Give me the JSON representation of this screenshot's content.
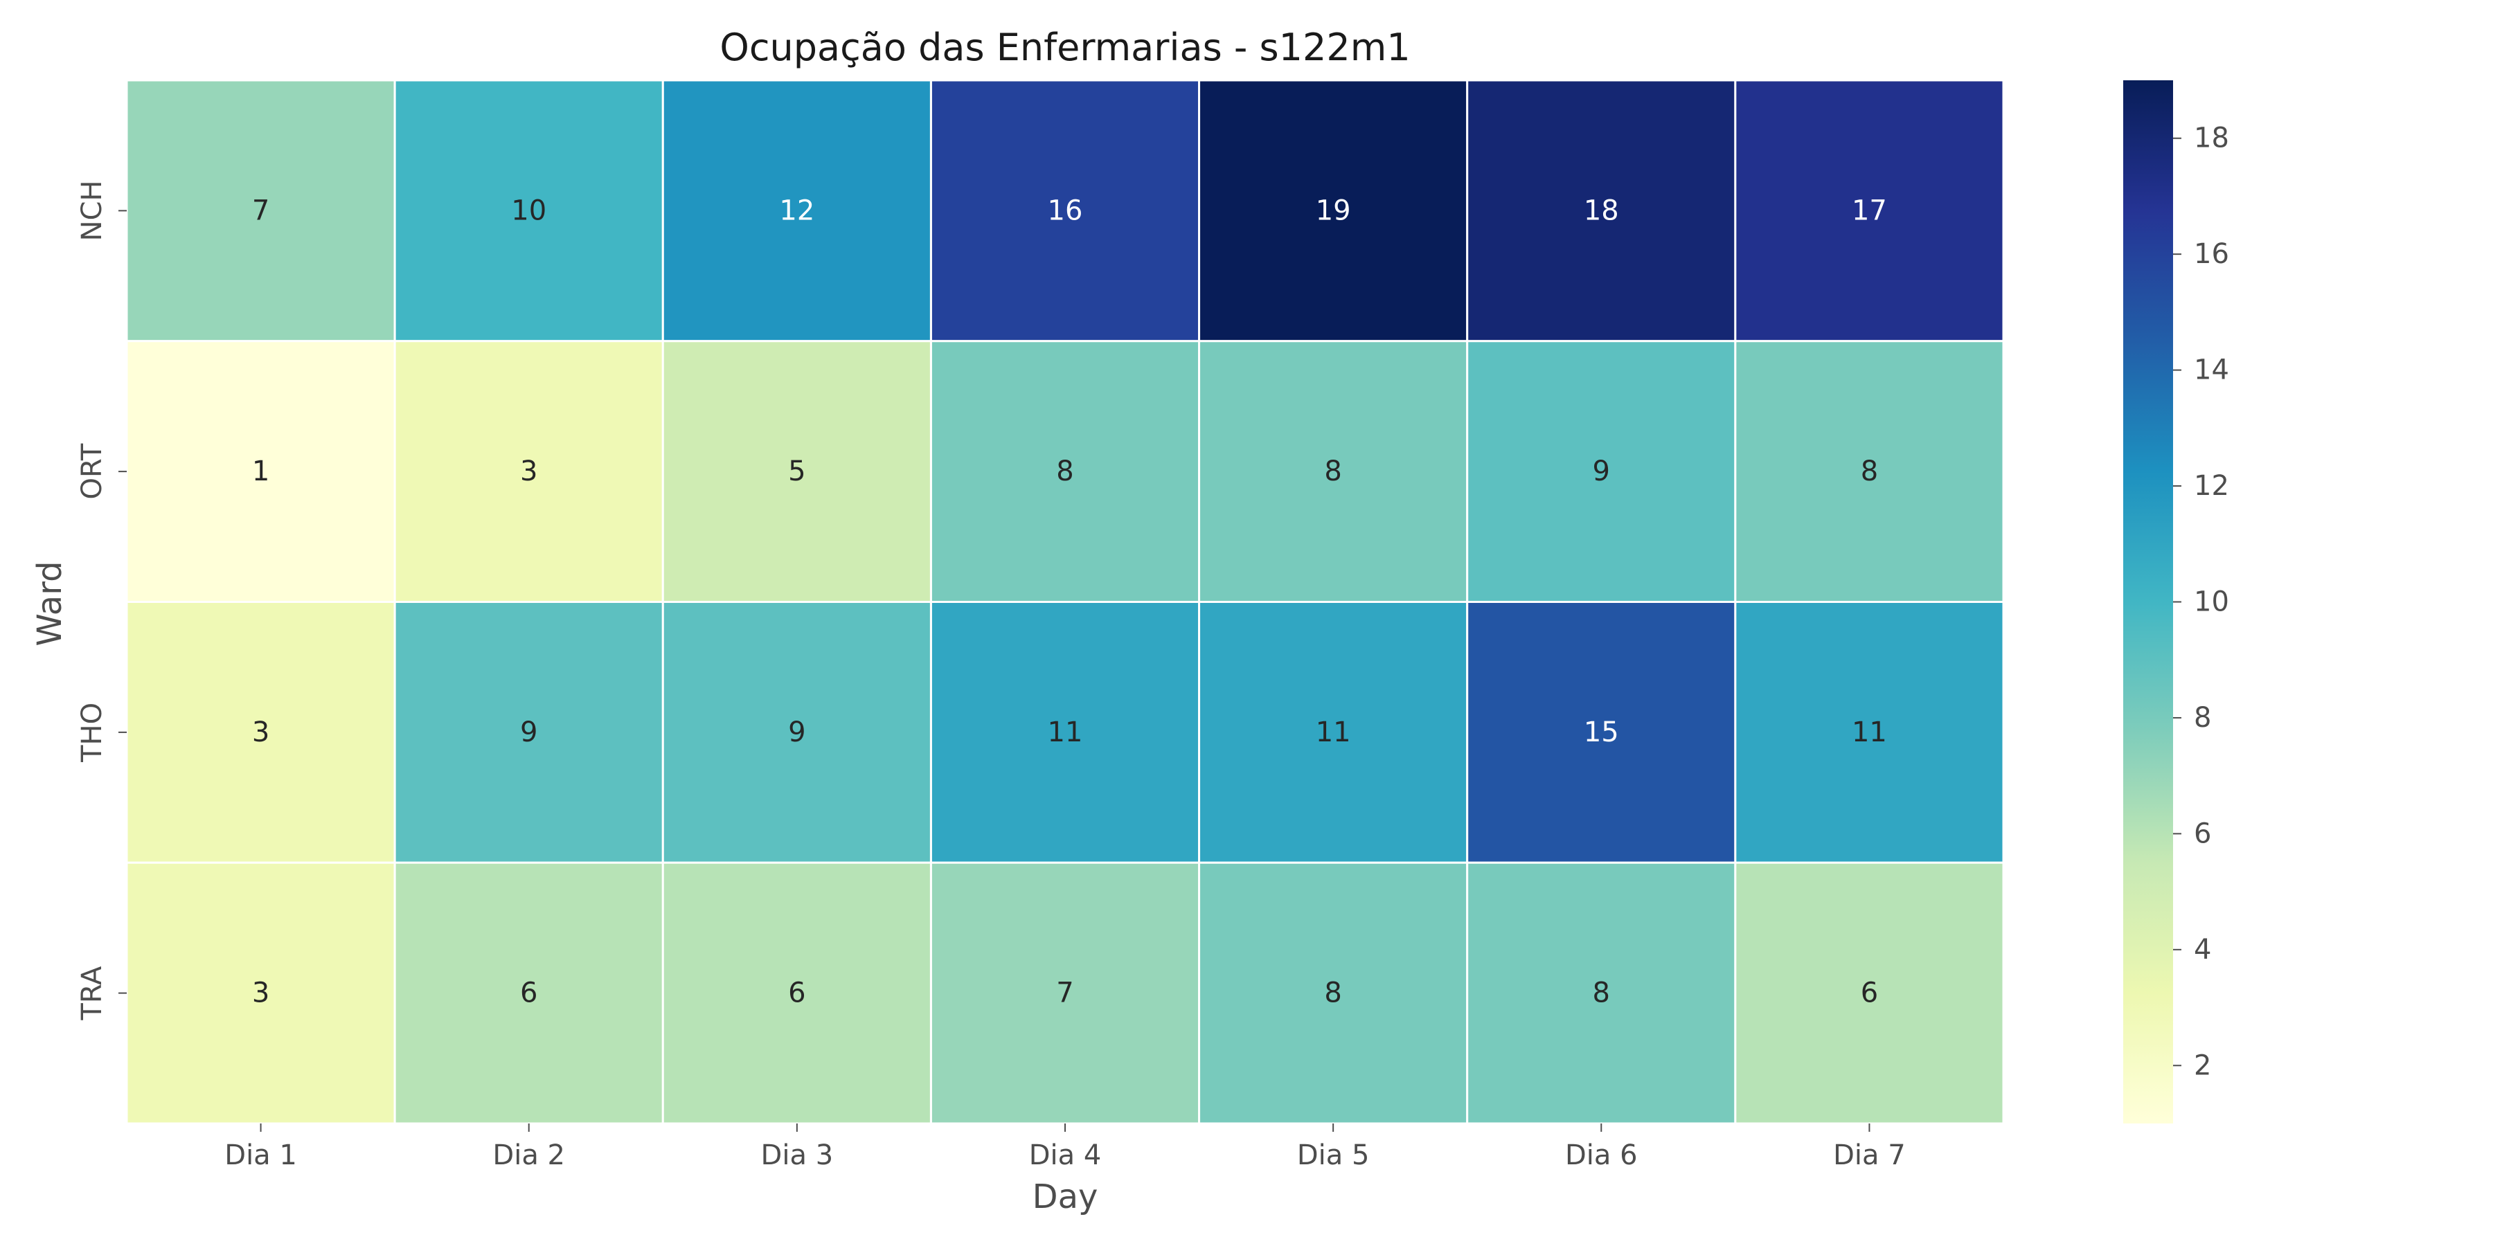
{
  "chart_data": {
    "type": "heatmap",
    "title": "Ocupação das Enfermarias - s122m1",
    "xlabel": "Day",
    "ylabel": "Ward",
    "x_categories": [
      "Dia 1",
      "Dia 2",
      "Dia 3",
      "Dia 4",
      "Dia 5",
      "Dia 6",
      "Dia 7"
    ],
    "y_categories": [
      "NCH",
      "ORT",
      "THO",
      "TRA"
    ],
    "values": [
      [
        7,
        10,
        12,
        16,
        19,
        18,
        17
      ],
      [
        1,
        3,
        5,
        8,
        8,
        9,
        8
      ],
      [
        3,
        9,
        9,
        11,
        11,
        15,
        11
      ],
      [
        3,
        6,
        6,
        7,
        8,
        8,
        6
      ]
    ],
    "colormap": "YlGnBu",
    "colorbar": {
      "range": [
        1,
        19
      ],
      "ticks": [
        2,
        4,
        6,
        8,
        10,
        12,
        14,
        16,
        18
      ]
    },
    "annotated": true,
    "cell_border_color": "#ffffff"
  }
}
